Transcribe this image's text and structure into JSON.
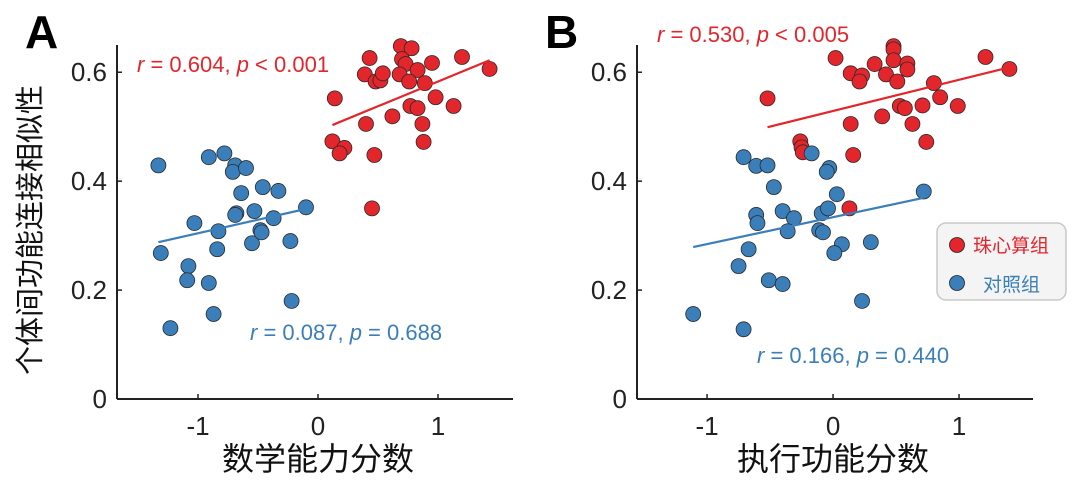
{
  "colors": {
    "group1": "#e3262b",
    "group2": "#3a7fba",
    "axis": "#222222"
  },
  "y_label": "个体间功能连接相似性",
  "legend": [
    {
      "label": "珠心算组",
      "color": "#e3262b"
    },
    {
      "label": "对照组",
      "color": "#3a7fba"
    }
  ],
  "chart_data": [
    {
      "type": "scatter",
      "panel": "A",
      "xlabel": "数学能力分数",
      "ylabel": "个体间功能连接相似性",
      "xlim": [
        -1.675,
        1.625
      ],
      "ylim": [
        0,
        0.65
      ],
      "xticks": [
        {
          "v": -1,
          "label": "-1"
        },
        {
          "v": 0,
          "label": "0"
        },
        {
          "v": 1,
          "label": "1"
        }
      ],
      "yticks": [
        {
          "v": 0,
          "label": "0"
        },
        {
          "v": 0.2,
          "label": "0.2"
        },
        {
          "v": 0.4,
          "label": "0.4"
        },
        {
          "v": 0.6,
          "label": "0.6"
        }
      ],
      "series": [
        {
          "name": "珠心算组",
          "color": "#e3262b",
          "stats": {
            "r_sym": "r",
            "r_text": " = 0.604, ",
            "p_sym": "p",
            "p_text": " < 0.001"
          },
          "fit": [
            [
              0.12,
              0.503
            ],
            [
              1.43,
              0.622
            ]
          ],
          "points": [
            [
              0.43,
              0.626
            ],
            [
              0.39,
              0.596
            ],
            [
              0.48,
              0.583
            ],
            [
              0.52,
              0.585
            ],
            [
              0.54,
              0.598
            ],
            [
              0.69,
              0.648
            ],
            [
              0.78,
              0.644
            ],
            [
              0.7,
              0.624
            ],
            [
              0.73,
              0.615
            ],
            [
              0.68,
              0.596
            ],
            [
              0.83,
              0.604
            ],
            [
              0.95,
              0.617
            ],
            [
              0.76,
              0.583
            ],
            [
              0.89,
              0.58
            ],
            [
              1.2,
              0.628
            ],
            [
              1.43,
              0.606
            ],
            [
              0.14,
              0.552
            ],
            [
              0.98,
              0.554
            ],
            [
              1.13,
              0.538
            ],
            [
              0.77,
              0.538
            ],
            [
              0.83,
              0.534
            ],
            [
              0.62,
              0.519
            ],
            [
              0.4,
              0.505
            ],
            [
              0.87,
              0.505
            ],
            [
              0.12,
              0.473
            ],
            [
              0.22,
              0.461
            ],
            [
              0.18,
              0.451
            ],
            [
              0.47,
              0.448
            ],
            [
              0.88,
              0.472
            ],
            [
              0.45,
              0.35
            ]
          ]
        },
        {
          "name": "对照组",
          "color": "#3a7fba",
          "stats": {
            "r_sym": "r",
            "r_text": " = 0.087, ",
            "p_sym": "p",
            "p_text": " = 0.688"
          },
          "fit": [
            [
              -1.33,
              0.288
            ],
            [
              -0.08,
              0.35
            ]
          ],
          "points": [
            [
              -1.33,
              0.429
            ],
            [
              -1.31,
              0.268
            ],
            [
              -1.23,
              0.13
            ],
            [
              -1.03,
              0.323
            ],
            [
              -1.08,
              0.244
            ],
            [
              -1.09,
              0.218
            ],
            [
              -0.91,
              0.213
            ],
            [
              -0.87,
              0.156
            ],
            [
              -0.91,
              0.444
            ],
            [
              -0.78,
              0.451
            ],
            [
              -0.69,
              0.429
            ],
            [
              -0.71,
              0.417
            ],
            [
              -0.6,
              0.424
            ],
            [
              -0.64,
              0.378
            ],
            [
              -0.46,
              0.389
            ],
            [
              -0.33,
              0.382
            ],
            [
              -0.68,
              0.341
            ],
            [
              -0.69,
              0.338
            ],
            [
              -0.53,
              0.345
            ],
            [
              -0.83,
              0.308
            ],
            [
              -0.84,
              0.275
            ],
            [
              -0.55,
              0.286
            ],
            [
              -0.48,
              0.31
            ],
            [
              -0.47,
              0.306
            ],
            [
              -0.37,
              0.332
            ],
            [
              -0.23,
              0.29
            ],
            [
              -0.22,
              0.18
            ],
            [
              -0.1,
              0.352
            ]
          ]
        }
      ]
    },
    {
      "type": "scatter",
      "panel": "B",
      "xlabel": "执行功能分数",
      "ylabel": "个体间功能连接相似性",
      "xlim": [
        -1.556,
        1.587
      ],
      "ylim": [
        0,
        0.65
      ],
      "xticks": [
        {
          "v": -1,
          "label": "-1"
        },
        {
          "v": 0,
          "label": "0"
        },
        {
          "v": 1,
          "label": "1"
        }
      ],
      "yticks": [
        {
          "v": 0,
          "label": "0"
        },
        {
          "v": 0.2,
          "label": "0.2"
        },
        {
          "v": 0.4,
          "label": "0.4"
        },
        {
          "v": 0.6,
          "label": "0.6"
        }
      ],
      "series": [
        {
          "name": "珠心算组",
          "color": "#e3262b",
          "stats": {
            "r_sym": "r",
            "r_text": " = 0.530, ",
            "p_sym": "p",
            "p_text": " < 0.005"
          },
          "fit": [
            [
              -0.52,
              0.499
            ],
            [
              1.4,
              0.609
            ]
          ],
          "points": [
            [
              0.02,
              0.626
            ],
            [
              0.14,
              0.598
            ],
            [
              0.23,
              0.594
            ],
            [
              0.21,
              0.583
            ],
            [
              0.33,
              0.615
            ],
            [
              0.42,
              0.596
            ],
            [
              0.48,
              0.648
            ],
            [
              0.48,
              0.642
            ],
            [
              0.48,
              0.622
            ],
            [
              0.59,
              0.616
            ],
            [
              0.59,
              0.605
            ],
            [
              0.51,
              0.583
            ],
            [
              1.21,
              0.628
            ],
            [
              1.4,
              0.606
            ],
            [
              0.8,
              0.58
            ],
            [
              0.85,
              0.554
            ],
            [
              0.99,
              0.538
            ],
            [
              0.71,
              0.539
            ],
            [
              0.53,
              0.538
            ],
            [
              0.57,
              0.534
            ],
            [
              0.39,
              0.519
            ],
            [
              0.14,
              0.505
            ],
            [
              0.63,
              0.505
            ],
            [
              -0.52,
              0.552
            ],
            [
              -0.26,
              0.473
            ],
            [
              -0.25,
              0.462
            ],
            [
              -0.24,
              0.453
            ],
            [
              0.16,
              0.448
            ],
            [
              0.74,
              0.472
            ],
            [
              0.13,
              0.35
            ]
          ]
        },
        {
          "name": "对照组",
          "color": "#3a7fba",
          "stats": {
            "r_sym": "r",
            "r_text": " = 0.166, ",
            "p_sym": "p",
            "p_text": " = 0.440"
          },
          "fit": [
            [
              -1.11,
              0.279
            ],
            [
              0.71,
              0.369
            ]
          ],
          "points": [
            [
              -0.71,
              0.444
            ],
            [
              -0.61,
              0.428
            ],
            [
              -0.52,
              0.429
            ],
            [
              -0.47,
              0.389
            ],
            [
              -0.17,
              0.451
            ],
            [
              -0.03,
              0.424
            ],
            [
              -0.05,
              0.417
            ],
            [
              0.03,
              0.376
            ],
            [
              -0.61,
              0.338
            ],
            [
              -0.6,
              0.323
            ],
            [
              -0.4,
              0.345
            ],
            [
              -0.31,
              0.332
            ],
            [
              -0.36,
              0.308
            ],
            [
              -0.09,
              0.341
            ],
            [
              -0.04,
              0.35
            ],
            [
              -0.11,
              0.31
            ],
            [
              -0.08,
              0.306
            ],
            [
              0.07,
              0.284
            ],
            [
              0.01,
              0.268
            ],
            [
              0.3,
              0.288
            ],
            [
              0.72,
              0.381
            ],
            [
              -0.67,
              0.275
            ],
            [
              -0.75,
              0.244
            ],
            [
              -0.51,
              0.218
            ],
            [
              -0.4,
              0.211
            ],
            [
              0.23,
              0.18
            ],
            [
              -1.11,
              0.156
            ],
            [
              -0.71,
              0.128
            ]
          ]
        }
      ]
    }
  ]
}
